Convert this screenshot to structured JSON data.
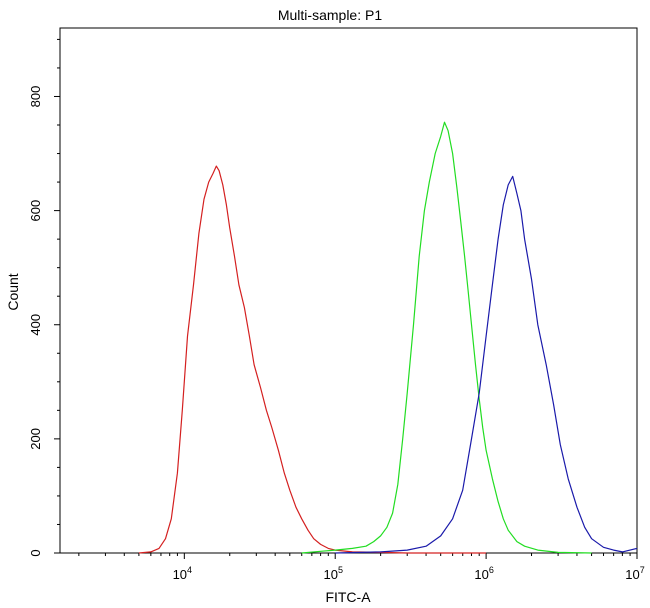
{
  "chart_data": {
    "type": "line",
    "title": "Multi-sample: P1",
    "xlabel": "FITC-A",
    "ylabel": "Count",
    "x_scale": "log",
    "xlim": [
      1500,
      10000000
    ],
    "ylim": [
      0,
      920
    ],
    "x_ticks": [
      {
        "value": 10000,
        "base": "10",
        "exp": "4"
      },
      {
        "value": 100000,
        "base": "10",
        "exp": "5"
      },
      {
        "value": 1000000,
        "base": "10",
        "exp": "6"
      },
      {
        "value": 10000000,
        "base": "10",
        "exp": "7"
      }
    ],
    "y_ticks": [
      0,
      200,
      400,
      600,
      800
    ],
    "grid": false,
    "legend": "none",
    "series": [
      {
        "color": "#d42020",
        "points": [
          [
            5000,
            0
          ],
          [
            6000,
            2
          ],
          [
            6800,
            8
          ],
          [
            7500,
            25
          ],
          [
            8200,
            60
          ],
          [
            9000,
            140
          ],
          [
            9700,
            250
          ],
          [
            10500,
            380
          ],
          [
            11500,
            470
          ],
          [
            12500,
            560
          ],
          [
            13500,
            620
          ],
          [
            14500,
            650
          ],
          [
            15500,
            665
          ],
          [
            16300,
            678
          ],
          [
            17000,
            670
          ],
          [
            18000,
            645
          ],
          [
            19000,
            610
          ],
          [
            20000,
            570
          ],
          [
            21500,
            520
          ],
          [
            23000,
            470
          ],
          [
            25000,
            430
          ],
          [
            27000,
            380
          ],
          [
            29000,
            330
          ],
          [
            32000,
            290
          ],
          [
            35000,
            250
          ],
          [
            38000,
            220
          ],
          [
            42000,
            180
          ],
          [
            46000,
            140
          ],
          [
            50000,
            110
          ],
          [
            55000,
            80
          ],
          [
            60000,
            60
          ],
          [
            66000,
            40
          ],
          [
            72000,
            25
          ],
          [
            80000,
            15
          ],
          [
            90000,
            8
          ],
          [
            100000,
            5
          ],
          [
            130000,
            2
          ],
          [
            200000,
            1
          ],
          [
            300000,
            0
          ],
          [
            1000000,
            0
          ]
        ]
      },
      {
        "color": "#22dd22",
        "points": [
          [
            60000,
            0
          ],
          [
            80000,
            3
          ],
          [
            100000,
            5
          ],
          [
            130000,
            8
          ],
          [
            160000,
            12
          ],
          [
            180000,
            20
          ],
          [
            200000,
            30
          ],
          [
            220000,
            45
          ],
          [
            240000,
            70
          ],
          [
            260000,
            120
          ],
          [
            280000,
            200
          ],
          [
            300000,
            280
          ],
          [
            330000,
            400
          ],
          [
            360000,
            520
          ],
          [
            390000,
            600
          ],
          [
            420000,
            650
          ],
          [
            460000,
            700
          ],
          [
            500000,
            730
          ],
          [
            530000,
            755
          ],
          [
            560000,
            740
          ],
          [
            600000,
            700
          ],
          [
            640000,
            640
          ],
          [
            680000,
            580
          ],
          [
            720000,
            520
          ],
          [
            760000,
            460
          ],
          [
            800000,
            400
          ],
          [
            850000,
            330
          ],
          [
            900000,
            270
          ],
          [
            950000,
            220
          ],
          [
            1000000,
            180
          ],
          [
            1100000,
            130
          ],
          [
            1200000,
            90
          ],
          [
            1300000,
            60
          ],
          [
            1400000,
            40
          ],
          [
            1600000,
            20
          ],
          [
            1800000,
            12
          ],
          [
            2200000,
            5
          ],
          [
            3000000,
            1
          ],
          [
            5000000,
            0
          ]
        ]
      },
      {
        "color": "#1a1aaa",
        "points": [
          [
            100000,
            0
          ],
          [
            200000,
            2
          ],
          [
            300000,
            5
          ],
          [
            400000,
            12
          ],
          [
            500000,
            30
          ],
          [
            600000,
            60
          ],
          [
            700000,
            110
          ],
          [
            800000,
            200
          ],
          [
            900000,
            280
          ],
          [
            1000000,
            380
          ],
          [
            1100000,
            470
          ],
          [
            1200000,
            550
          ],
          [
            1300000,
            610
          ],
          [
            1400000,
            645
          ],
          [
            1500000,
            660
          ],
          [
            1600000,
            630
          ],
          [
            1700000,
            600
          ],
          [
            1800000,
            550
          ],
          [
            2000000,
            480
          ],
          [
            2200000,
            400
          ],
          [
            2500000,
            330
          ],
          [
            2800000,
            260
          ],
          [
            3100000,
            190
          ],
          [
            3500000,
            130
          ],
          [
            4000000,
            80
          ],
          [
            4500000,
            45
          ],
          [
            5000000,
            25
          ],
          [
            6000000,
            10
          ],
          [
            7000000,
            5
          ],
          [
            8000000,
            2
          ],
          [
            10000000,
            8
          ]
        ]
      }
    ]
  }
}
